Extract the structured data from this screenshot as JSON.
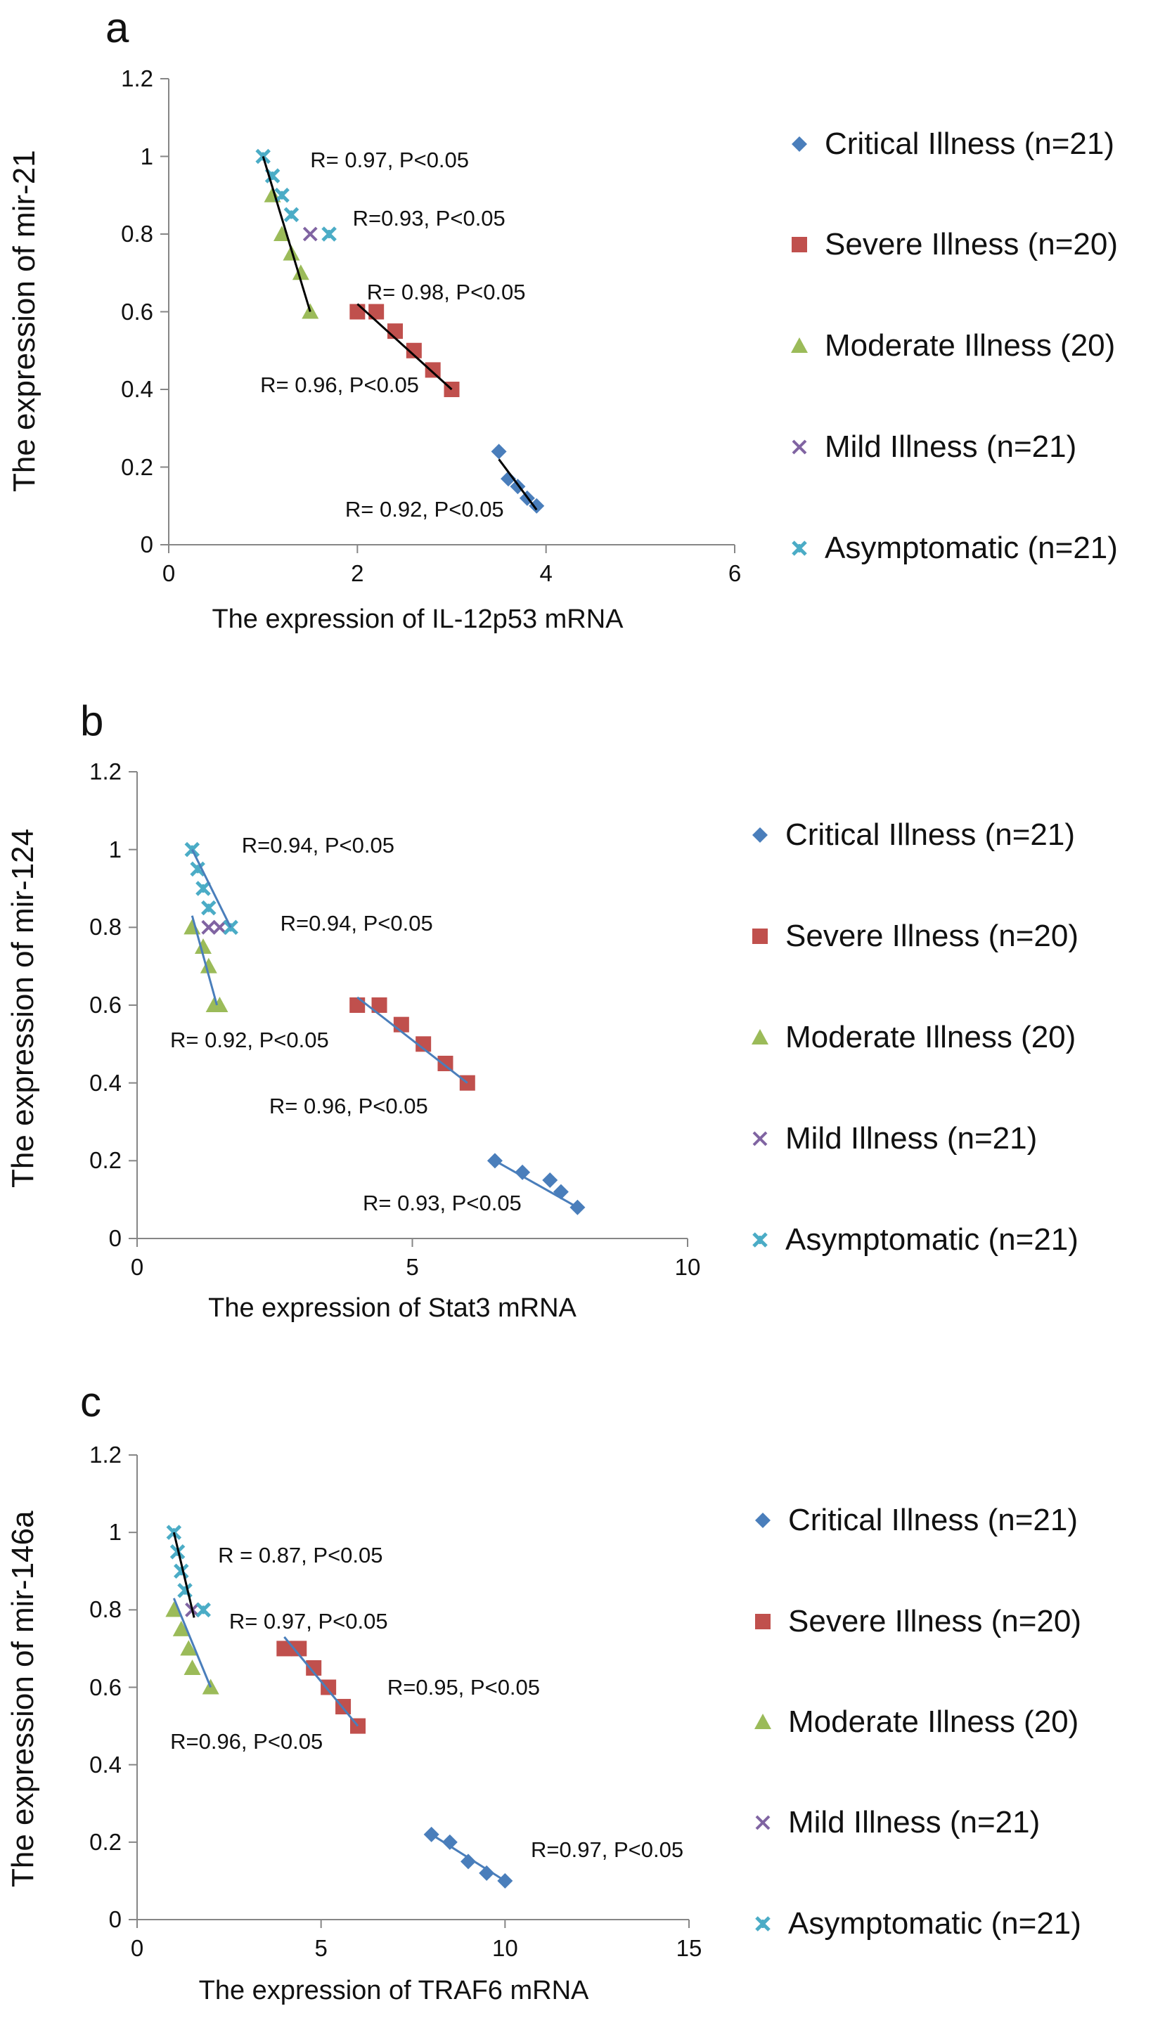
{
  "colors": {
    "critical": "#4a7ebb",
    "severe": "#c0504d",
    "moderate": "#9bbb59",
    "mild": "#8064a2",
    "asymptomatic": "#4bacc6",
    "fit_black": "#000000",
    "fit_blue": "#4a7ebb",
    "axis": "#868686"
  },
  "chart_data": [
    {
      "type": "scatter",
      "panel_label": "a",
      "title": "",
      "xlabel": "The expression of IL-12p53 mRNA",
      "ylabel": "The expression of mir-21",
      "xlim": [
        0,
        6
      ],
      "ylim": [
        0,
        1.2
      ],
      "xticks": [
        "0",
        "2",
        "4",
        "6"
      ],
      "yticks": [
        "0",
        "0.2",
        "0.4",
        "0.6",
        "0.8",
        "1",
        "1.2"
      ],
      "legend": [
        "Critical Illness (n=21)",
        "Severe Illness (n=20)",
        "Moderate Illness (20)",
        "Mild Illness (n=21)",
        "Asymptomatic (n=21)"
      ],
      "series": [
        {
          "name": "Critical Illness (n=21)",
          "marker": "diamond",
          "color": "critical",
          "points": [
            [
              3.5,
              0.24
            ],
            [
              3.6,
              0.17
            ],
            [
              3.7,
              0.15
            ],
            [
              3.8,
              0.12
            ],
            [
              3.9,
              0.1
            ]
          ],
          "fit": [
            [
              3.5,
              0.22
            ],
            [
              3.9,
              0.09
            ]
          ],
          "fit_color": "fit_black"
        },
        {
          "name": "Severe Illness (n=20)",
          "marker": "square",
          "color": "severe",
          "points": [
            [
              2.0,
              0.6
            ],
            [
              2.2,
              0.6
            ],
            [
              2.4,
              0.55
            ],
            [
              2.6,
              0.5
            ],
            [
              2.8,
              0.45
            ],
            [
              3.0,
              0.4
            ]
          ],
          "fit": [
            [
              2.0,
              0.62
            ],
            [
              3.0,
              0.4
            ]
          ],
          "fit_color": "fit_black"
        },
        {
          "name": "Moderate Illness (20)",
          "marker": "triangle",
          "color": "moderate",
          "points": [
            [
              1.1,
              0.9
            ],
            [
              1.2,
              0.8
            ],
            [
              1.3,
              0.75
            ],
            [
              1.4,
              0.7
            ],
            [
              1.5,
              0.6
            ]
          ],
          "fit": [
            [
              1.0,
              1.0
            ],
            [
              1.5,
              0.6
            ]
          ],
          "fit_color": "fit_black"
        },
        {
          "name": "Mild Illness (n=21)",
          "marker": "x",
          "color": "mild",
          "points": [
            [
              1.5,
              0.8
            ]
          ],
          "fit": null
        },
        {
          "name": "Asymptomatic (n=21)",
          "marker": "star",
          "color": "asymptomatic",
          "points": [
            [
              1.0,
              1.0
            ],
            [
              1.1,
              0.95
            ],
            [
              1.2,
              0.9
            ],
            [
              1.3,
              0.85
            ],
            [
              1.7,
              0.8
            ]
          ],
          "fit": null
        }
      ],
      "annotations": [
        {
          "text": "R= 0.97, P<0.05",
          "x": 1.5,
          "y": 0.99
        },
        {
          "text": "R=0.93, P<0.05",
          "x": 1.95,
          "y": 0.84
        },
        {
          "text": "R= 0.98, P<0.05",
          "x": 2.1,
          "y": 0.65
        },
        {
          "text": "R= 0.96, P<0.05",
          "x": 0.97,
          "y": 0.41
        },
        {
          "text": "R= 0.92, P<0.05",
          "x": 1.87,
          "y": 0.09
        }
      ]
    },
    {
      "type": "scatter",
      "panel_label": "b",
      "title": "",
      "xlabel": "The expression of Stat3 mRNA",
      "ylabel": "The expression of mir-124",
      "xlim": [
        0,
        10
      ],
      "ylim": [
        0,
        1.2
      ],
      "xticks": [
        "0",
        "5",
        "10"
      ],
      "yticks": [
        "0",
        "0.2",
        "0.4",
        "0.6",
        "0.8",
        "1",
        "1.2"
      ],
      "legend": [
        "Critical Illness (n=21)",
        "Severe Illness (n=20)",
        "Moderate Illness (20)",
        "Mild Illness (n=21)",
        "Asymptomatic (n=21)"
      ],
      "series": [
        {
          "name": "Critical Illness (n=21)",
          "marker": "diamond",
          "color": "critical",
          "points": [
            [
              6.5,
              0.2
            ],
            [
              7.0,
              0.17
            ],
            [
              7.5,
              0.15
            ],
            [
              7.7,
              0.12
            ],
            [
              8.0,
              0.08
            ]
          ],
          "fit": [
            [
              6.5,
              0.2
            ],
            [
              8.0,
              0.08
            ]
          ],
          "fit_color": "fit_blue"
        },
        {
          "name": "Severe Illness (n=20)",
          "marker": "square",
          "color": "severe",
          "points": [
            [
              4.0,
              0.6
            ],
            [
              4.4,
              0.6
            ],
            [
              4.8,
              0.55
            ],
            [
              5.2,
              0.5
            ],
            [
              5.6,
              0.45
            ],
            [
              6.0,
              0.4
            ]
          ],
          "fit": [
            [
              4.0,
              0.62
            ],
            [
              6.0,
              0.4
            ]
          ],
          "fit_color": "fit_blue"
        },
        {
          "name": "Moderate Illness (20)",
          "marker": "triangle",
          "color": "moderate",
          "points": [
            [
              1.0,
              0.8
            ],
            [
              1.2,
              0.75
            ],
            [
              1.3,
              0.7
            ],
            [
              1.4,
              0.6
            ],
            [
              1.5,
              0.6
            ]
          ],
          "fit": [
            [
              1.0,
              0.83
            ],
            [
              1.45,
              0.6
            ]
          ],
          "fit_color": "fit_blue"
        },
        {
          "name": "Mild Illness (n=21)",
          "marker": "x",
          "color": "mild",
          "points": [
            [
              1.3,
              0.8
            ],
            [
              1.5,
              0.8
            ]
          ],
          "fit": null
        },
        {
          "name": "Asymptomatic (n=21)",
          "marker": "star",
          "color": "asymptomatic",
          "points": [
            [
              1.0,
              1.0
            ],
            [
              1.1,
              0.95
            ],
            [
              1.2,
              0.9
            ],
            [
              1.3,
              0.85
            ],
            [
              1.7,
              0.8
            ]
          ],
          "fit": [
            [
              1.0,
              1.0
            ],
            [
              1.7,
              0.8
            ]
          ],
          "fit_color": "fit_blue"
        }
      ],
      "annotations": [
        {
          "text": "R=0.94, P<0.05",
          "x": 1.9,
          "y": 1.01
        },
        {
          "text": "R=0.94, P<0.05",
          "x": 2.6,
          "y": 0.81
        },
        {
          "text": "R= 0.92, P<0.05",
          "x": 0.6,
          "y": 0.51
        },
        {
          "text": "R= 0.96, P<0.05",
          "x": 2.4,
          "y": 0.34
        },
        {
          "text": "R= 0.93, P<0.05",
          "x": 4.1,
          "y": 0.09
        }
      ]
    },
    {
      "type": "scatter",
      "panel_label": "c",
      "title": "",
      "xlabel": "The expression of TRAF6 mRNA",
      "ylabel": "The expression of mir-146a",
      "xlim": [
        0,
        15
      ],
      "ylim": [
        0,
        1.2
      ],
      "xticks": [
        "0",
        "5",
        "10",
        "15"
      ],
      "yticks": [
        "0",
        "0.2",
        "0.4",
        "0.6",
        "0.8",
        "1",
        "1.2"
      ],
      "legend": [
        "Critical Illness (n=21)",
        "Severe Illness (n=20)",
        "Moderate Illness (20)",
        "Mild Illness (n=21)",
        "Asymptomatic (n=21)"
      ],
      "series": [
        {
          "name": "Critical Illness (n=21)",
          "marker": "diamond",
          "color": "critical",
          "points": [
            [
              8.0,
              0.22
            ],
            [
              8.5,
              0.2
            ],
            [
              9.0,
              0.15
            ],
            [
              9.5,
              0.12
            ],
            [
              10.0,
              0.1
            ]
          ],
          "fit": [
            [
              8.0,
              0.22
            ],
            [
              10.0,
              0.1
            ]
          ],
          "fit_color": "fit_blue"
        },
        {
          "name": "Severe Illness (n=20)",
          "marker": "square",
          "color": "severe",
          "points": [
            [
              4.0,
              0.7
            ],
            [
              4.4,
              0.7
            ],
            [
              4.8,
              0.65
            ],
            [
              5.2,
              0.6
            ],
            [
              5.6,
              0.55
            ],
            [
              6.0,
              0.5
            ]
          ],
          "fit": [
            [
              4.0,
              0.73
            ],
            [
              6.0,
              0.5
            ]
          ],
          "fit_color": "fit_blue"
        },
        {
          "name": "Moderate Illness (20)",
          "marker": "triangle",
          "color": "moderate",
          "points": [
            [
              1.0,
              0.8
            ],
            [
              1.2,
              0.75
            ],
            [
              1.4,
              0.7
            ],
            [
              1.5,
              0.65
            ],
            [
              2.0,
              0.6
            ]
          ],
          "fit": [
            [
              1.0,
              0.83
            ],
            [
              2.0,
              0.6
            ]
          ],
          "fit_color": "fit_blue"
        },
        {
          "name": "Mild Illness (n=21)",
          "marker": "x",
          "color": "mild",
          "points": [
            [
              1.5,
              0.8
            ]
          ],
          "fit": null
        },
        {
          "name": "Asymptomatic (n=21)",
          "marker": "star",
          "color": "asymptomatic",
          "points": [
            [
              1.0,
              1.0
            ],
            [
              1.1,
              0.95
            ],
            [
              1.2,
              0.9
            ],
            [
              1.3,
              0.85
            ],
            [
              1.8,
              0.8
            ]
          ],
          "fit": [
            [
              1.0,
              1.0
            ],
            [
              1.55,
              0.78
            ]
          ],
          "fit_color": "fit_black"
        }
      ],
      "annotations": [
        {
          "text": "R = 0.87, P<0.05",
          "x": 2.2,
          "y": 0.94
        },
        {
          "text": "R= 0.97, P<0.05",
          "x": 2.5,
          "y": 0.77
        },
        {
          "text": "R=0.95, P<0.05",
          "x": 6.8,
          "y": 0.6
        },
        {
          "text": "R=0.96, P<0.05",
          "x": 0.9,
          "y": 0.46
        },
        {
          "text": "R=0.97, P<0.05",
          "x": 10.7,
          "y": 0.18
        }
      ]
    }
  ]
}
